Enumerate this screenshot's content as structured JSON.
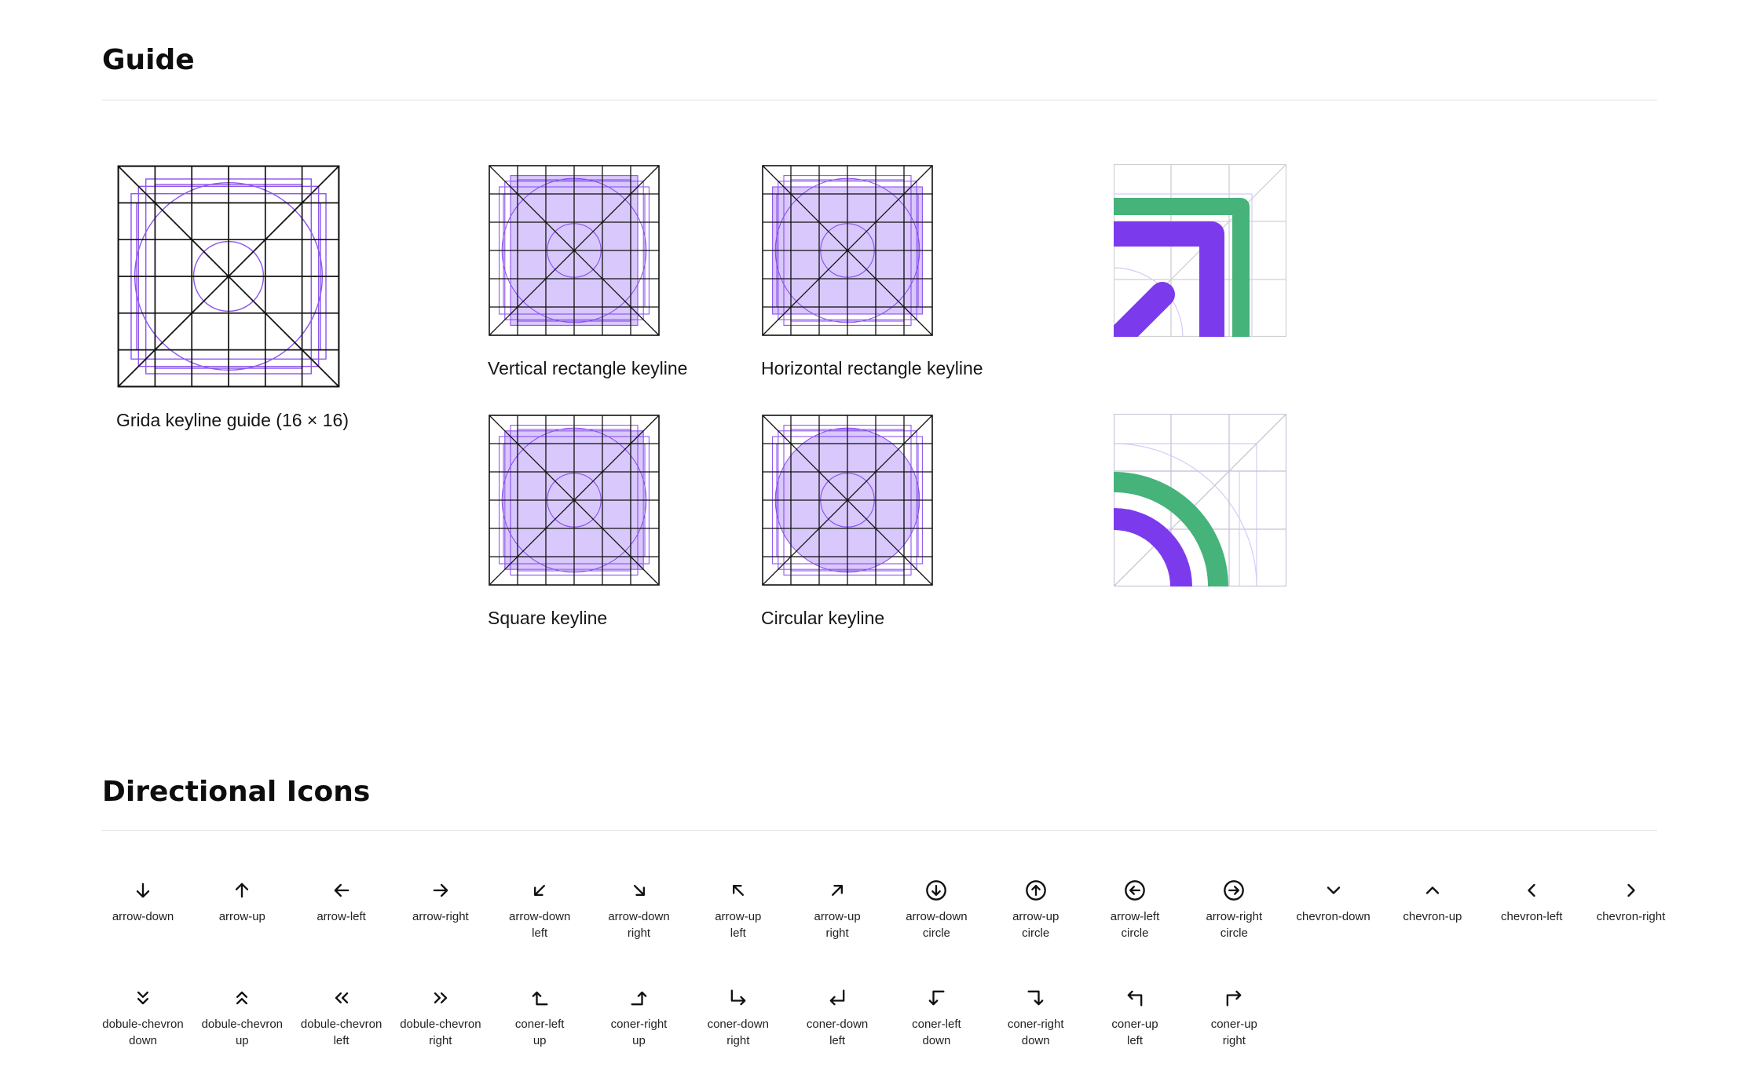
{
  "guide": {
    "title": "Guide",
    "keylines": [
      {
        "id": "grid",
        "caption": "Grida keyline guide (16 × 16)",
        "fill": "none"
      },
      {
        "id": "vrect",
        "caption": "Vertical rectangle keyline",
        "fill": "vrect"
      },
      {
        "id": "hrect",
        "caption": "Horizontal rectangle keyline",
        "fill": "hrect"
      },
      {
        "id": "square",
        "caption": "Square keyline",
        "fill": "square"
      },
      {
        "id": "circle",
        "caption": "Circular keyline",
        "fill": "circle"
      }
    ],
    "examples": [
      {
        "id": "corner-demo",
        "shape": "rounded-corner"
      },
      {
        "id": "arc-demo",
        "shape": "arc"
      }
    ]
  },
  "directional": {
    "title": "Directional Icons",
    "icons": [
      {
        "icon": "arrow-down-icon",
        "label": [
          "arrow-down"
        ]
      },
      {
        "icon": "arrow-up-icon",
        "label": [
          "arrow-up"
        ]
      },
      {
        "icon": "arrow-left-icon",
        "label": [
          "arrow-left"
        ]
      },
      {
        "icon": "arrow-right-icon",
        "label": [
          "arrow-right"
        ]
      },
      {
        "icon": "arrow-down-left-icon",
        "label": [
          "arrow-down",
          "left"
        ]
      },
      {
        "icon": "arrow-down-right-icon",
        "label": [
          "arrow-down",
          "right"
        ]
      },
      {
        "icon": "arrow-up-left-icon",
        "label": [
          "arrow-up",
          "left"
        ]
      },
      {
        "icon": "arrow-up-right-icon",
        "label": [
          "arrow-up",
          "right"
        ]
      },
      {
        "icon": "arrow-down-circle-icon",
        "label": [
          "arrow-down",
          "circle"
        ]
      },
      {
        "icon": "arrow-up-circle-icon",
        "label": [
          "arrow-up",
          "circle"
        ]
      },
      {
        "icon": "arrow-left-circle-icon",
        "label": [
          "arrow-left",
          "circle"
        ]
      },
      {
        "icon": "arrow-right-circle-icon",
        "label": [
          "arrow-right",
          "circle"
        ]
      },
      {
        "icon": "chevron-down-icon",
        "label": [
          "chevron-down"
        ]
      },
      {
        "icon": "chevron-up-icon",
        "label": [
          "chevron-up"
        ]
      },
      {
        "icon": "chevron-left-icon",
        "label": [
          "chevron-left"
        ]
      },
      {
        "icon": "chevron-right-icon",
        "label": [
          "chevron-right"
        ]
      },
      {
        "icon": "double-chevron-down-icon",
        "label": [
          "dobule-chevron",
          "down"
        ]
      },
      {
        "icon": "double-chevron-up-icon",
        "label": [
          "dobule-chevron",
          "up"
        ]
      },
      {
        "icon": "double-chevron-left-icon",
        "label": [
          "dobule-chevron",
          "left"
        ]
      },
      {
        "icon": "double-chevron-right-icon",
        "label": [
          "dobule-chevron",
          "right"
        ]
      },
      {
        "icon": "corner-left-up-icon",
        "label": [
          "coner-left",
          "up"
        ]
      },
      {
        "icon": "corner-right-up-icon",
        "label": [
          "coner-right",
          "up"
        ]
      },
      {
        "icon": "corner-down-right-icon",
        "label": [
          "coner-down",
          "right"
        ]
      },
      {
        "icon": "corner-down-left-icon",
        "label": [
          "coner-down",
          "left"
        ]
      },
      {
        "icon": "corner-left-down-icon",
        "label": [
          "coner-left",
          "down"
        ]
      },
      {
        "icon": "corner-right-down-icon",
        "label": [
          "coner-right",
          "down"
        ]
      },
      {
        "icon": "corner-up-left-icon",
        "label": [
          "coner-up",
          "left"
        ]
      },
      {
        "icon": "corner-up-right-icon",
        "label": [
          "coner-up",
          "right"
        ]
      }
    ]
  },
  "colors": {
    "purple": "#7c3aed",
    "purple_light": "#d9c8fb",
    "green": "#45b37a",
    "grid_line": "#111111"
  }
}
